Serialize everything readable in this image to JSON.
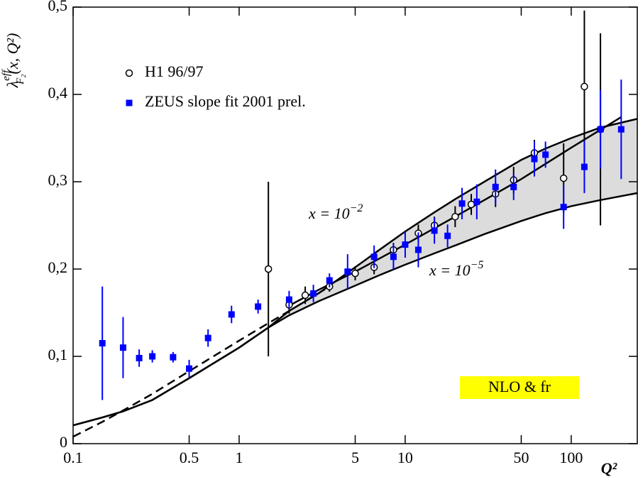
{
  "chart_data": {
    "type": "scatter",
    "xscale": "log",
    "xlim": [
      0.1,
      250
    ],
    "ylim": [
      0,
      0.5
    ],
    "xticks": [
      0.1,
      0.5,
      1,
      5,
      10,
      50,
      100
    ],
    "yticks": [
      {
        "value": 0,
        "label": "0"
      },
      {
        "value": 0.1,
        "label": "0,1"
      },
      {
        "value": 0.2,
        "label": "0,2"
      },
      {
        "value": 0.3,
        "label": "0,3"
      },
      {
        "value": 0.4,
        "label": "0,4"
      },
      {
        "value": 0.5,
        "label": "0,5"
      }
    ],
    "xlabel": "Q²",
    "ylabel": {
      "base": "λ",
      "sup": "eff",
      "sub": "F₂",
      "args": "(x, Q²)"
    },
    "legend": "upper left",
    "series": [
      {
        "name": "H1 96/97",
        "color": "#000000",
        "marker": "circle",
        "x": [
          1.5,
          2,
          2.5,
          3.5,
          5,
          6.5,
          8.5,
          12,
          15,
          20,
          25,
          35,
          45,
          60,
          90,
          120,
          150
        ],
        "values": [
          0.2,
          0.159,
          0.17,
          0.18,
          0.195,
          0.202,
          0.222,
          0.241,
          0.25,
          0.26,
          0.274,
          0.286,
          0.302,
          0.333,
          0.304,
          0.409,
          0.36
        ],
        "errors": [
          0.1,
          0.01,
          0.01,
          0.006,
          0.008,
          0.008,
          0.008,
          0.01,
          0.01,
          0.012,
          0.012,
          0.015,
          0.015,
          0.015,
          0.04,
          0.087,
          0.11
        ]
      },
      {
        "name": "ZEUS slope fit 2001 prel.",
        "color": "#0000ff",
        "marker": "square",
        "x": [
          0.15,
          0.2,
          0.25,
          0.3,
          0.4,
          0.5,
          0.65,
          0.9,
          1.3,
          2,
          2.8,
          3.5,
          4.5,
          6.5,
          8.5,
          10,
          12,
          15,
          18,
          22,
          27,
          35,
          45,
          60,
          70,
          90,
          120,
          150,
          200
        ],
        "values": [
          0.115,
          0.11,
          0.098,
          0.1,
          0.099,
          0.086,
          0.121,
          0.148,
          0.157,
          0.165,
          0.172,
          0.187,
          0.197,
          0.214,
          0.214,
          0.228,
          0.222,
          0.244,
          0.238,
          0.275,
          0.277,
          0.294,
          0.294,
          0.326,
          0.331,
          0.271,
          0.317,
          0.36,
          0.36
        ],
        "errors": [
          0.065,
          0.035,
          0.01,
          0.007,
          0.006,
          0.01,
          0.01,
          0.01,
          0.008,
          0.01,
          0.01,
          0.008,
          0.02,
          0.013,
          0.015,
          0.015,
          0.02,
          0.015,
          0.013,
          0.018,
          0.02,
          0.02,
          0.015,
          0.02,
          0.015,
          0.025,
          0.03,
          0.045,
          0.057
        ]
      }
    ],
    "curves": [
      {
        "color": "#000000",
        "style": "solid",
        "x": [
          0.1,
          0.15,
          0.2,
          0.3,
          0.5,
          0.7,
          1,
          1.5,
          2,
          3,
          5,
          7,
          10,
          15,
          20,
          30,
          50,
          70,
          100,
          150,
          250
        ],
        "values": [
          0.021,
          0.03,
          0.037,
          0.05,
          0.075,
          0.092,
          0.11,
          0.133,
          0.152,
          0.172,
          0.202,
          0.222,
          0.243,
          0.265,
          0.28,
          0.3,
          0.325,
          0.338,
          0.35,
          0.362,
          0.372
        ]
      },
      {
        "color": "#000000",
        "style": "solid",
        "x": [
          0.1,
          0.15,
          0.2,
          0.3,
          0.5,
          0.7,
          1,
          1.5,
          2,
          3,
          5,
          7,
          10,
          15,
          20,
          30,
          50,
          70,
          100,
          150,
          250
        ],
        "values": [
          0.021,
          0.03,
          0.037,
          0.05,
          0.075,
          0.092,
          0.11,
          0.133,
          0.147,
          0.163,
          0.181,
          0.193,
          0.205,
          0.218,
          0.227,
          0.24,
          0.255,
          0.264,
          0.272,
          0.279,
          0.287
        ]
      },
      {
        "color": "#000000",
        "style": "solid",
        "x": [
          2,
          3,
          5,
          10,
          20,
          50,
          100,
          200
        ],
        "values": [
          0.158,
          0.176,
          0.197,
          0.228,
          0.26,
          0.303,
          0.339,
          0.374
        ]
      },
      {
        "color": "#000000",
        "style": "dashed",
        "x": [
          0.1,
          0.15,
          0.2,
          0.3,
          0.5,
          0.7,
          1,
          1.5,
          2,
          3.5
        ],
        "values": [
          0.008,
          0.025,
          0.038,
          0.057,
          0.083,
          0.1,
          0.118,
          0.138,
          0.152,
          0.18
        ]
      }
    ],
    "band": {
      "between": [
        0,
        1
      ],
      "color": "#dcdcdc"
    },
    "annotations": [
      {
        "text": "x = 10",
        "sup": "−2"
      },
      {
        "text": "x = 10",
        "sup": "−5"
      },
      {
        "text": "NLO & fr",
        "color": "#ff0000",
        "background": "#ffff00"
      }
    ]
  }
}
